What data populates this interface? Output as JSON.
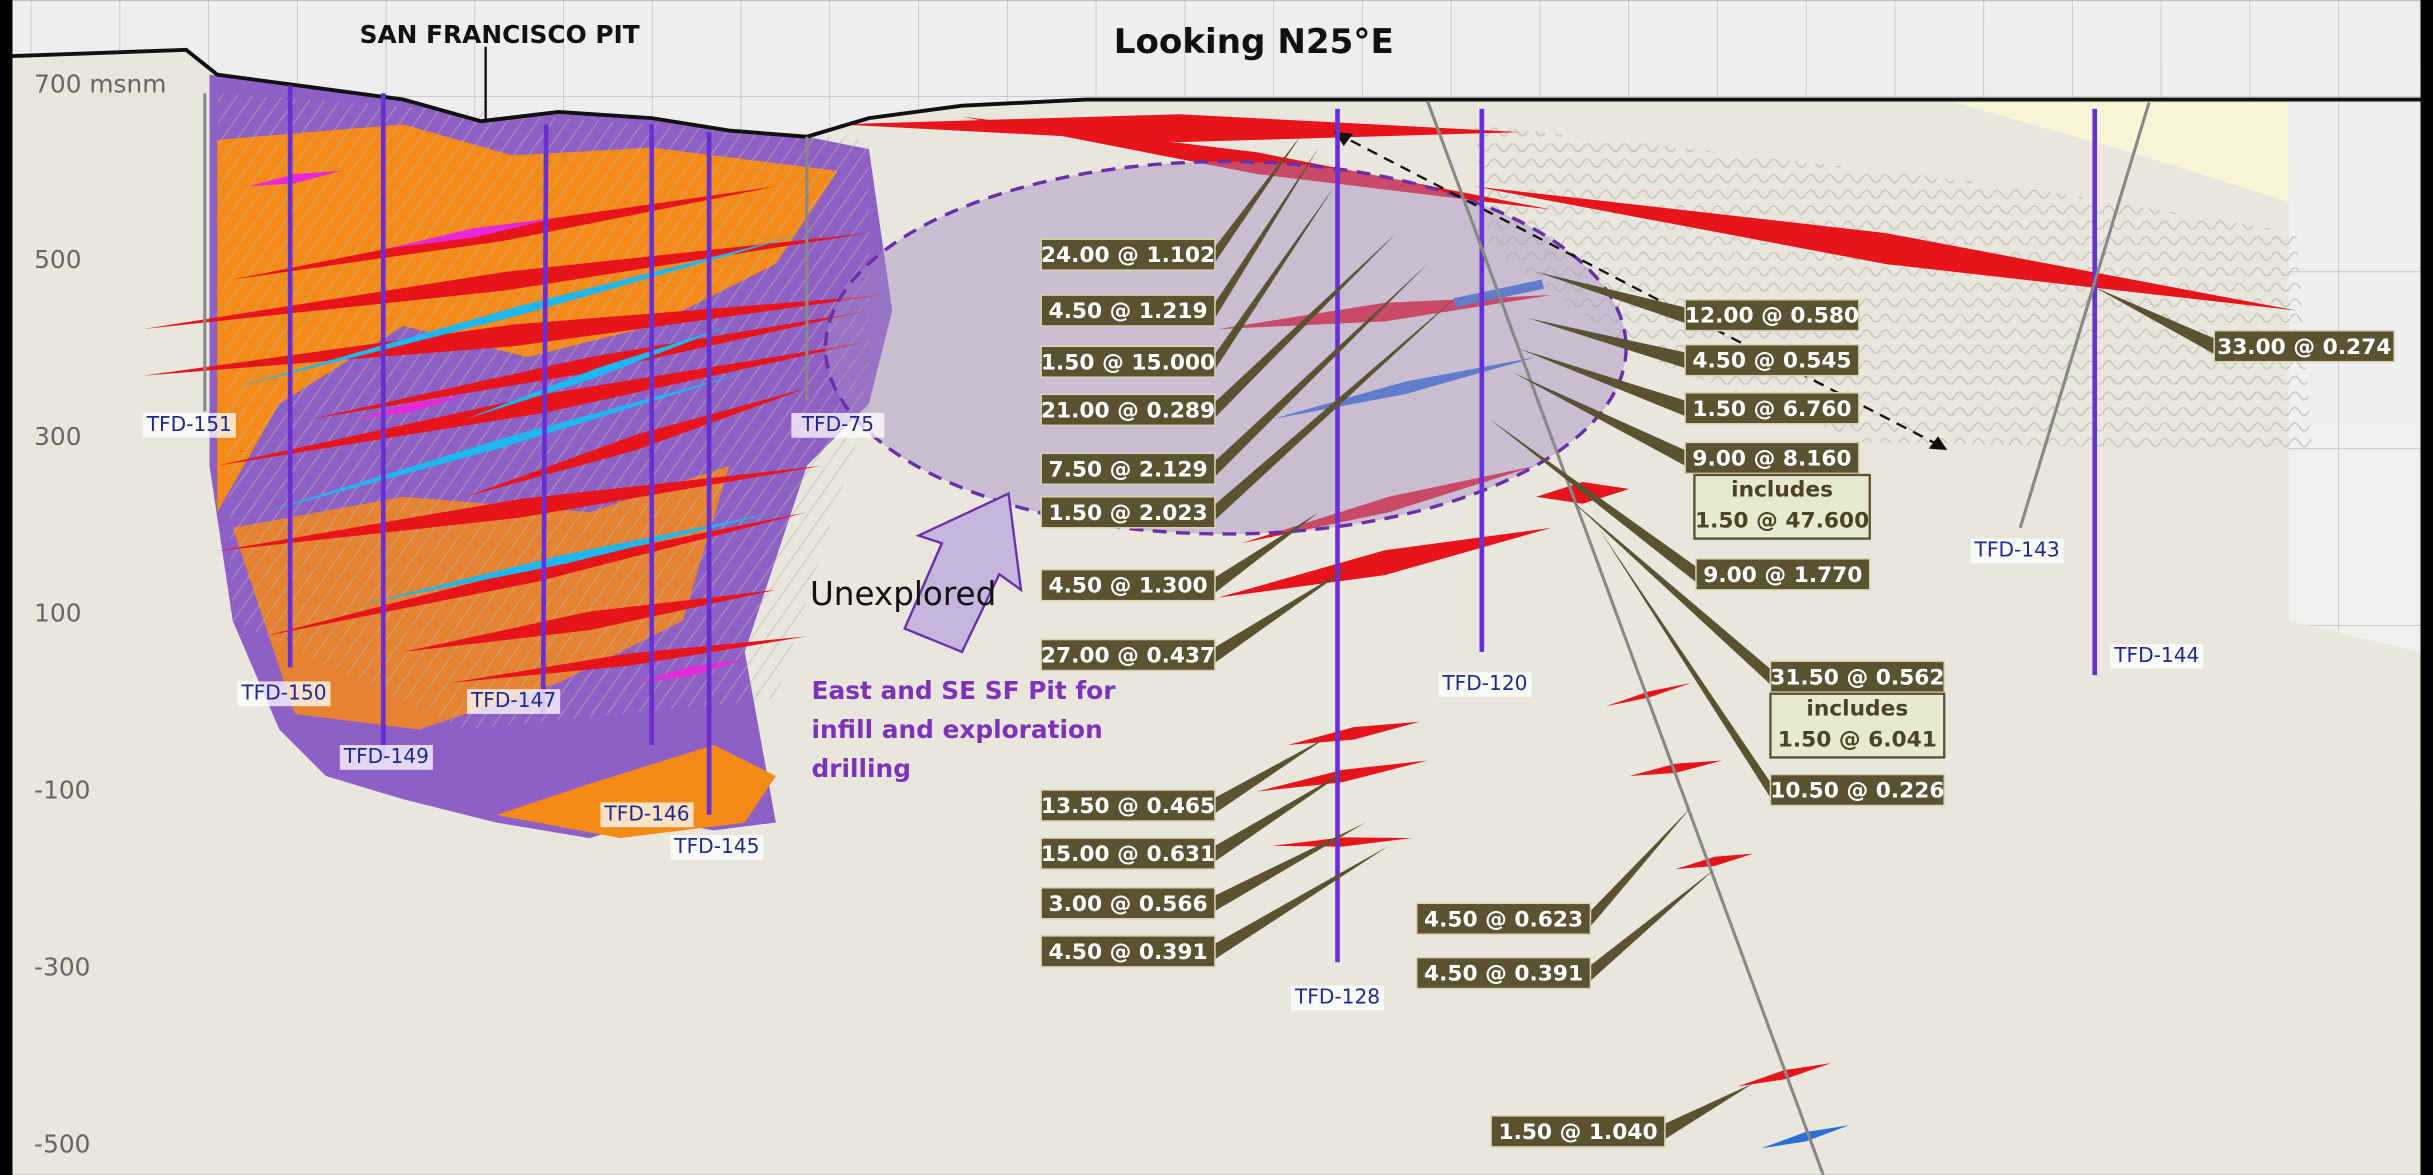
{
  "header": {
    "title": "Looking N25°E",
    "pit_label": "SAN FRANCISCO PIT"
  },
  "elevations": [
    "700 msnm",
    "500",
    "300",
    "100",
    "-100",
    "-300",
    "-500"
  ],
  "drill_holes": [
    "TFD-151",
    "TFD-150",
    "TFD-149",
    "TFD-147",
    "TFD-146",
    "TFD-145",
    "TFD-75",
    "TFD-128",
    "TFD-120",
    "TFD-143",
    "TFD-144"
  ],
  "intercepts": [
    "24.00 @ 1.102",
    "4.50 @ 1.219",
    "1.50 @ 15.000",
    "21.00 @ 0.289",
    "7.50 @ 2.129",
    "1.50 @ 2.023",
    "4.50 @ 1.300",
    "27.00 @ 0.437",
    "13.50 @ 0.465",
    "15.00 @ 0.631",
    "3.00 @ 0.566",
    "4.50 @ 0.391",
    "12.00 @ 0.580",
    "4.50 @ 0.545",
    "1.50 @ 6.760",
    "9.00 @ 8.160",
    "9.00 @ 1.770",
    "31.50 @ 0.562",
    "10.50 @ 0.226",
    "33.00 @ 0.274",
    "4.50 @ 0.623",
    "4.50 @ 0.391",
    "1.50 @ 1.040"
  ],
  "includes": [
    {
      "label": "includes",
      "value": "1.50 @ 47.600"
    },
    {
      "label": "includes",
      "value": "1.50 @ 6.041"
    }
  ],
  "annotations": {
    "unexplored": "Unexplored",
    "target": [
      "East and SE SF Pit for",
      "infill and exploration",
      "drilling"
    ]
  }
}
